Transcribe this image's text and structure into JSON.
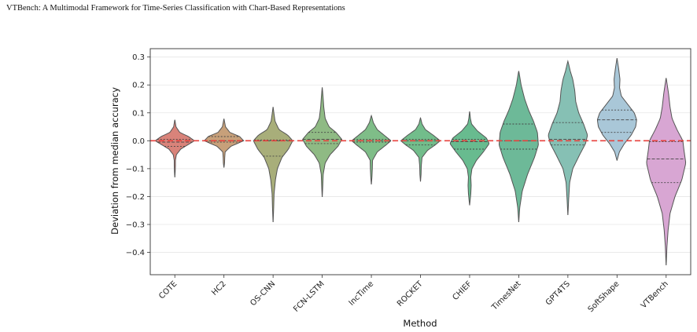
{
  "header": {
    "title": "VTBench: A Multimodal Framework for Time-Series Classification with Chart-Based Representations"
  },
  "chart_data": {
    "type": "violin",
    "title": "",
    "xlabel": "Method",
    "ylabel": "Deviation from median accuracy",
    "ylim": [
      -0.48,
      0.33
    ],
    "yticks": [
      0.3,
      0.2,
      0.1,
      0.0,
      -0.1,
      -0.2,
      -0.3,
      -0.4
    ],
    "ytick_labels": [
      "0.3",
      "0.2",
      "0.1",
      "0.0",
      "−0.1",
      "−0.2",
      "−0.3",
      "−0.4"
    ],
    "reference_line": {
      "y": 0.0,
      "color": "#e8403c",
      "style": "dashed"
    },
    "categories": [
      "COTE",
      "HC2",
      "OS-CNN",
      "FCN-LSTM",
      "IncTime",
      "ROCKET",
      "CHIEF",
      "TimesNet",
      "GPT4TS",
      "SoftShape",
      "VTBench"
    ],
    "violins": [
      {
        "name": "COTE",
        "color": "#d9837a",
        "min": -0.13,
        "max": 0.075,
        "q1": -0.02,
        "median": -0.005,
        "q3": 0.005,
        "profile": [
          [
            -0.13,
            0.003
          ],
          [
            -0.11,
            0.02
          ],
          [
            -0.09,
            0.03
          ],
          [
            -0.07,
            0.03
          ],
          [
            -0.05,
            0.08
          ],
          [
            -0.03,
            0.3
          ],
          [
            -0.015,
            0.65
          ],
          [
            0.0,
            1.0
          ],
          [
            0.015,
            0.7
          ],
          [
            0.03,
            0.25
          ],
          [
            0.05,
            0.06
          ],
          [
            0.075,
            0.003
          ]
        ]
      },
      {
        "name": "HC2",
        "color": "#c7a07a",
        "min": -0.095,
        "max": 0.078,
        "q1": -0.005,
        "median": 0.0,
        "q3": 0.015,
        "profile": [
          [
            -0.095,
            0.003
          ],
          [
            -0.08,
            0.03
          ],
          [
            -0.06,
            0.04
          ],
          [
            -0.04,
            0.06
          ],
          [
            -0.02,
            0.35
          ],
          [
            0.0,
            1.0
          ],
          [
            0.015,
            0.8
          ],
          [
            0.03,
            0.3
          ],
          [
            0.05,
            0.08
          ],
          [
            0.078,
            0.003
          ]
        ]
      },
      {
        "name": "OS-CNN",
        "color": "#a8ae7a",
        "min": -0.29,
        "max": 0.12,
        "q1": -0.055,
        "median": 0.0,
        "q3": 0.003,
        "profile": [
          [
            -0.29,
            0.003
          ],
          [
            -0.24,
            0.03
          ],
          [
            -0.19,
            0.05
          ],
          [
            -0.14,
            0.12
          ],
          [
            -0.1,
            0.22
          ],
          [
            -0.06,
            0.45
          ],
          [
            -0.03,
            0.78
          ],
          [
            0.0,
            1.0
          ],
          [
            0.02,
            0.75
          ],
          [
            0.04,
            0.3
          ],
          [
            0.07,
            0.1
          ],
          [
            0.1,
            0.04
          ],
          [
            0.12,
            0.003
          ]
        ]
      },
      {
        "name": "FCN-LSTM",
        "color": "#8fba84",
        "min": -0.2,
        "max": 0.19,
        "q1": -0.01,
        "median": 0.005,
        "q3": 0.03,
        "profile": [
          [
            -0.2,
            0.003
          ],
          [
            -0.16,
            0.03
          ],
          [
            -0.12,
            0.05
          ],
          [
            -0.08,
            0.15
          ],
          [
            -0.05,
            0.4
          ],
          [
            -0.02,
            0.8
          ],
          [
            0.005,
            1.0
          ],
          [
            0.03,
            0.7
          ],
          [
            0.05,
            0.35
          ],
          [
            0.08,
            0.15
          ],
          [
            0.12,
            0.08
          ],
          [
            0.16,
            0.04
          ],
          [
            0.19,
            0.003
          ]
        ]
      },
      {
        "name": "IncTime",
        "color": "#7fbd88",
        "min": -0.155,
        "max": 0.09,
        "q1": -0.005,
        "median": 0.0,
        "q3": 0.005,
        "profile": [
          [
            -0.155,
            0.003
          ],
          [
            -0.13,
            0.03
          ],
          [
            -0.1,
            0.05
          ],
          [
            -0.07,
            0.06
          ],
          [
            -0.04,
            0.3
          ],
          [
            -0.015,
            0.75
          ],
          [
            0.0,
            1.0
          ],
          [
            0.02,
            0.65
          ],
          [
            0.04,
            0.3
          ],
          [
            0.065,
            0.1
          ],
          [
            0.09,
            0.003
          ]
        ]
      },
      {
        "name": "ROCKET",
        "color": "#72bd8b",
        "min": -0.145,
        "max": 0.082,
        "q1": -0.015,
        "median": 0.0,
        "q3": 0.005,
        "profile": [
          [
            -0.145,
            0.003
          ],
          [
            -0.12,
            0.03
          ],
          [
            -0.09,
            0.04
          ],
          [
            -0.06,
            0.08
          ],
          [
            -0.035,
            0.35
          ],
          [
            -0.015,
            0.75
          ],
          [
            0.0,
            1.0
          ],
          [
            0.02,
            0.65
          ],
          [
            0.04,
            0.25
          ],
          [
            0.06,
            0.08
          ],
          [
            0.082,
            0.003
          ]
        ]
      },
      {
        "name": "CHIEF",
        "color": "#68bb8f",
        "min": -0.23,
        "max": 0.105,
        "q1": -0.03,
        "median": -0.003,
        "q3": 0.005,
        "profile": [
          [
            -0.23,
            0.003
          ],
          [
            -0.19,
            0.06
          ],
          [
            -0.16,
            0.08
          ],
          [
            -0.13,
            0.06
          ],
          [
            -0.1,
            0.12
          ],
          [
            -0.07,
            0.35
          ],
          [
            -0.04,
            0.7
          ],
          [
            -0.01,
            1.0
          ],
          [
            0.01,
            0.85
          ],
          [
            0.035,
            0.4
          ],
          [
            0.06,
            0.1
          ],
          [
            0.08,
            0.04
          ],
          [
            0.105,
            0.003
          ]
        ]
      },
      {
        "name": "TimesNet",
        "color": "#6db998",
        "min": -0.29,
        "max": 0.25,
        "q1": -0.03,
        "median": 0.0,
        "q3": 0.06,
        "profile": [
          [
            -0.29,
            0.003
          ],
          [
            -0.24,
            0.05
          ],
          [
            -0.18,
            0.18
          ],
          [
            -0.12,
            0.45
          ],
          [
            -0.06,
            0.8
          ],
          [
            -0.015,
            1.0
          ],
          [
            0.03,
            0.95
          ],
          [
            0.07,
            0.75
          ],
          [
            0.11,
            0.5
          ],
          [
            0.15,
            0.3
          ],
          [
            0.2,
            0.12
          ],
          [
            0.25,
            0.003
          ]
        ]
      },
      {
        "name": "GPT4TS",
        "color": "#86c0b4",
        "min": -0.265,
        "max": 0.285,
        "q1": -0.015,
        "median": 0.005,
        "q3": 0.065,
        "profile": [
          [
            -0.265,
            0.003
          ],
          [
            -0.21,
            0.04
          ],
          [
            -0.15,
            0.09
          ],
          [
            -0.1,
            0.25
          ],
          [
            -0.05,
            0.6
          ],
          [
            -0.01,
            0.9
          ],
          [
            0.02,
            1.0
          ],
          [
            0.06,
            0.8
          ],
          [
            0.1,
            0.55
          ],
          [
            0.14,
            0.4
          ],
          [
            0.18,
            0.35
          ],
          [
            0.22,
            0.25
          ],
          [
            0.25,
            0.12
          ],
          [
            0.285,
            0.003
          ]
        ]
      },
      {
        "name": "SoftShape",
        "color": "#a9c7d8",
        "min": -0.07,
        "max": 0.295,
        "q1": 0.03,
        "median": 0.075,
        "q3": 0.11,
        "profile": [
          [
            -0.07,
            0.003
          ],
          [
            -0.04,
            0.12
          ],
          [
            -0.01,
            0.38
          ],
          [
            0.02,
            0.72
          ],
          [
            0.05,
            0.95
          ],
          [
            0.075,
            1.0
          ],
          [
            0.1,
            0.88
          ],
          [
            0.13,
            0.55
          ],
          [
            0.16,
            0.22
          ],
          [
            0.19,
            0.13
          ],
          [
            0.22,
            0.15
          ],
          [
            0.26,
            0.08
          ],
          [
            0.295,
            0.003
          ]
        ]
      },
      {
        "name": "VTBench",
        "color": "#d8a6d3",
        "min": -0.445,
        "max": 0.225,
        "q1": -0.15,
        "median": -0.065,
        "q3": -0.003,
        "profile": [
          [
            -0.445,
            0.003
          ],
          [
            -0.38,
            0.04
          ],
          [
            -0.32,
            0.1
          ],
          [
            -0.26,
            0.2
          ],
          [
            -0.2,
            0.45
          ],
          [
            -0.14,
            0.8
          ],
          [
            -0.08,
            1.0
          ],
          [
            -0.03,
            0.9
          ],
          [
            0.0,
            0.85
          ],
          [
            0.04,
            0.55
          ],
          [
            0.08,
            0.3
          ],
          [
            0.12,
            0.2
          ],
          [
            0.17,
            0.12
          ],
          [
            0.225,
            0.003
          ]
        ]
      }
    ]
  }
}
